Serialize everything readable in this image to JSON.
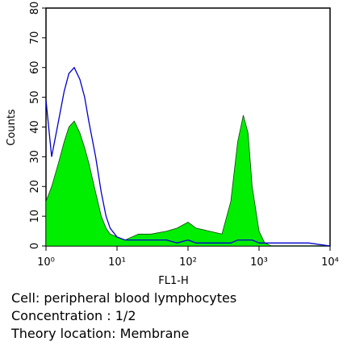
{
  "chart_data": {
    "type": "histogram-overlay",
    "xlabel": "FL1-H",
    "ylabel": "Counts",
    "xlog": true,
    "xlim": [
      1,
      10000
    ],
    "ylim": [
      0,
      80
    ],
    "xticks": [
      {
        "value": 1,
        "label": "10⁰"
      },
      {
        "value": 10,
        "label": "10¹"
      },
      {
        "value": 100,
        "label": "10²"
      },
      {
        "value": 1000,
        "label": "10³"
      },
      {
        "value": 10000,
        "label": "10⁴"
      }
    ],
    "yticks": [
      0,
      10,
      20,
      30,
      40,
      50,
      60,
      70,
      80
    ],
    "x": [
      1,
      1.2,
      1.5,
      1.8,
      2.1,
      2.5,
      3,
      3.5,
      4,
      5,
      6,
      7,
      8,
      10,
      13,
      20,
      30,
      50,
      70,
      100,
      130,
      200,
      300,
      400,
      500,
      600,
      700,
      800,
      1000,
      1200,
      1500,
      2000,
      3000,
      5000,
      10000
    ],
    "series": [
      {
        "style": "area",
        "color": "#00ee00",
        "values": [
          15,
          20,
          28,
          35,
          40,
          42,
          38,
          33,
          28,
          18,
          10,
          6,
          4,
          3,
          2,
          4,
          4,
          5,
          6,
          8,
          6,
          5,
          4,
          15,
          35,
          44,
          38,
          20,
          5,
          1,
          0,
          0,
          0,
          0,
          0
        ]
      },
      {
        "style": "line",
        "color": "#0000cc",
        "values": [
          49,
          30,
          42,
          52,
          58,
          60,
          56,
          50,
          42,
          30,
          18,
          10,
          6,
          3,
          2,
          2,
          2,
          2,
          1,
          2,
          1,
          1,
          1,
          1,
          2,
          2,
          2,
          2,
          1,
          1,
          1,
          1,
          1,
          1,
          0
        ]
      }
    ],
    "annotations": [
      "Cell: peripheral blood lymphocytes",
      "Concentration : 1/2",
      "Theory location: Membrane"
    ]
  }
}
